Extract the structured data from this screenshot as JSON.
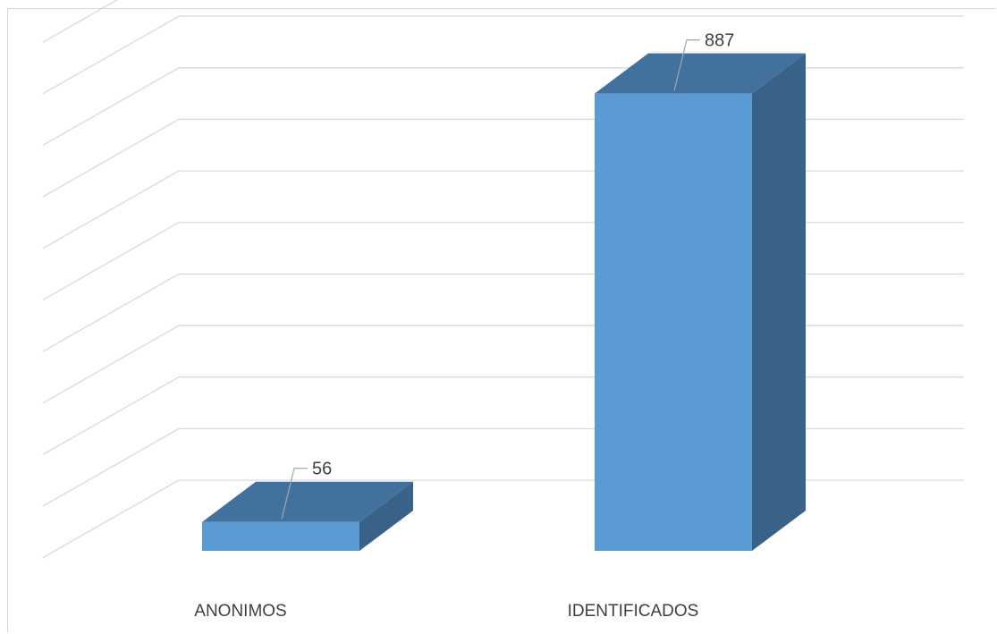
{
  "chart_data": {
    "type": "bar",
    "three_d": true,
    "categories": [
      "ANONIMOS",
      "IDENTIFICADOS"
    ],
    "values": [
      56,
      887
    ],
    "data_labels": [
      "56",
      "887"
    ],
    "ylim": [
      0,
      1000
    ],
    "gridlines": true,
    "legend": "none",
    "colors": {
      "bar_front": "#5b9bd5",
      "bar_top": "#41719c",
      "bar_side": "#386287",
      "gridline": "#d9d9d9",
      "leader_line": "#a6a6a6",
      "text": "#404040"
    }
  }
}
